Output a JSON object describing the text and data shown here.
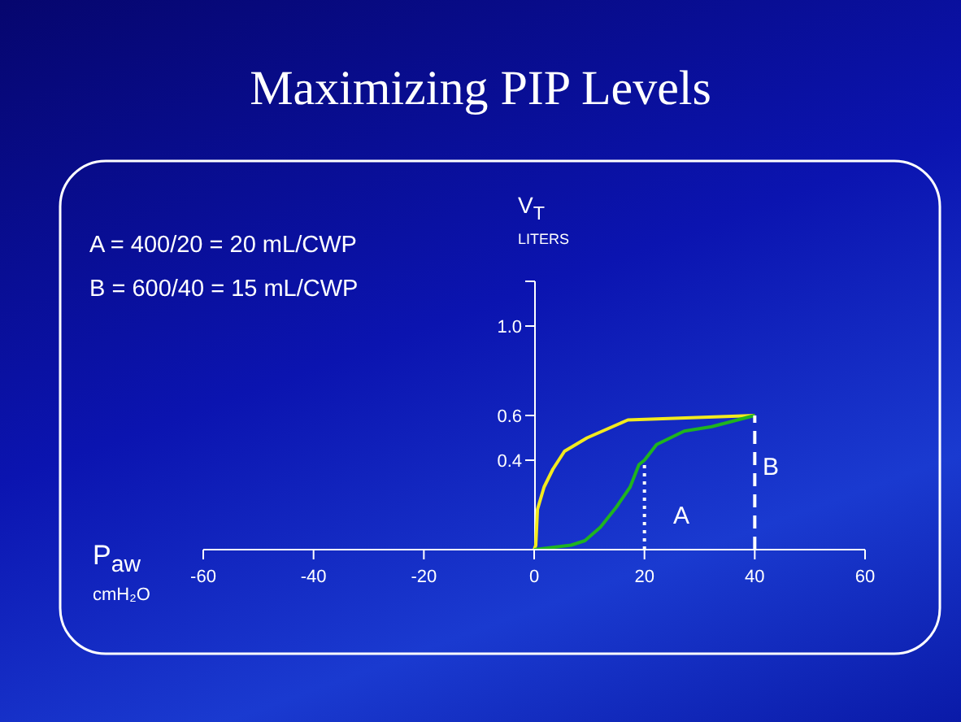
{
  "chart_data": {
    "type": "line",
    "title": "Maximizing PIP Levels",
    "xlabel": "P$_{aw}$\ncmH₂O",
    "ylabel": "V$_{T}$\nLITERS",
    "xlim": [
      -60,
      60
    ],
    "xticks": [
      -60,
      -40,
      -20,
      0,
      20,
      40,
      60
    ],
    "ylim": [
      0,
      1.2
    ],
    "yticks": [
      {
        "value": 0.4,
        "label": "0.4"
      },
      {
        "value": 0.6,
        "label": "0.6"
      },
      {
        "value": 1,
        "label": "1.0"
      },
      {
        "value": 1.2,
        "label": null
      }
    ],
    "marker": "none",
    "series": [
      {
        "color": "#f2ea1e",
        "line_style": "solid",
        "x": [
          0,
          0.3,
          0.6,
          1.8,
          3.4,
          5.5,
          9.6,
          17,
          40
        ],
        "values": [
          0,
          0.02,
          0.18,
          0.28,
          0.36,
          0.44,
          0.5,
          0.58,
          0.6
        ]
      },
      {
        "color": "#1fb41f",
        "line_style": "solid",
        "x": [
          0,
          6.7,
          9.2,
          12,
          14.9,
          17.4,
          19,
          20,
          22.2,
          27.2,
          32.2,
          40
        ],
        "values": [
          0,
          0.02,
          0.04,
          0.1,
          0.19,
          0.28,
          0.38,
          0.4,
          0.47,
          0.53,
          0.55,
          0.6
        ]
      },
      {
        "color": "#ffffff",
        "line_style": "dotted",
        "x": [
          20,
          20
        ],
        "values": [
          0,
          0.4
        ]
      },
      {
        "color": "#ffffff",
        "line_style": "dashed",
        "x": [
          40,
          40
        ],
        "values": [
          0,
          0.6
        ]
      }
    ],
    "annotations": [
      "A = 400/20 = 20 mL/CWP",
      "B = 600/40 = 15 mL/CWP",
      "A",
      "B"
    ]
  }
}
